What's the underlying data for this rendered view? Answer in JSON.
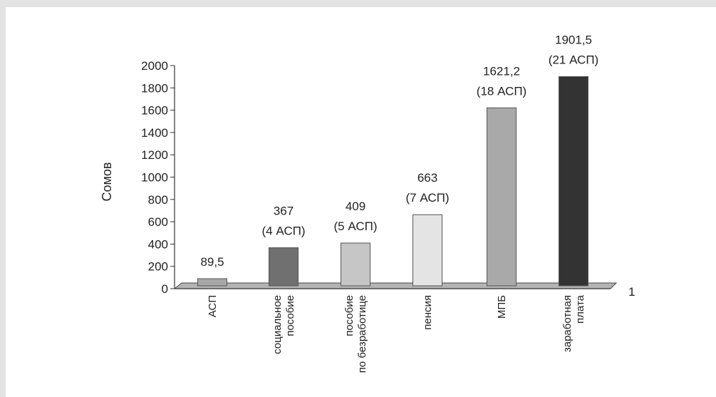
{
  "chart_data": {
    "type": "bar",
    "title": "",
    "xlabel": "",
    "ylabel": "Сомов",
    "ylim": [
      0,
      2000
    ],
    "yticks": [
      0,
      200,
      400,
      600,
      800,
      1000,
      1200,
      1400,
      1600,
      1800,
      2000
    ],
    "categories": [
      [
        "АСП"
      ],
      [
        "социальное",
        "пособие"
      ],
      [
        "пособие",
        "по безработице"
      ],
      [
        "пенсия"
      ],
      [
        "МПБ"
      ],
      [
        "заработная",
        "плата"
      ]
    ],
    "values": [
      89.5,
      367,
      409,
      663,
      1621.2,
      1901.5
    ],
    "data_labels": [
      [
        "89,5"
      ],
      [
        "367",
        "(4 АСП)"
      ],
      [
        "409",
        "(5 АСП)"
      ],
      [
        "663",
        "(7 АСП)"
      ],
      [
        "1621,2",
        "(18 АСП)"
      ],
      [
        "1901,5",
        "(21 АСП)"
      ]
    ],
    "bar_colors": [
      "#a7a7a7",
      "#707070",
      "#c6c6c6",
      "#e4e4e4",
      "#a9a9a9",
      "#333333"
    ],
    "series_label": "1",
    "grid": false,
    "legend": "none"
  }
}
